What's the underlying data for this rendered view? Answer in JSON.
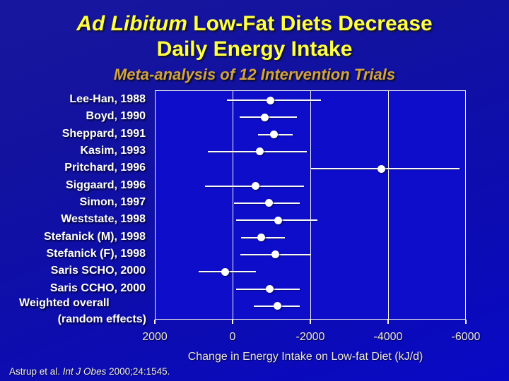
{
  "slide": {
    "title": {
      "italic_part": "Ad Libitum",
      "rest_part": " Low-Fat Diets Decrease",
      "line2": "Daily Energy Intake"
    },
    "subtitle": "Meta-analysis of 12 Intervention Trials",
    "citation": {
      "prefix": "Astrup et al. ",
      "italic": "Int J Obes",
      "suffix": " 2000;24:1545."
    }
  },
  "chart_data": {
    "type": "scatter",
    "subtype": "forest-plot",
    "title": "Ad Libitum Low-Fat Diets Decrease Daily Energy Intake",
    "subtitle": "Meta-analysis of 12 Intervention Trials",
    "xlabel": "Change in Energy Intake on Low-fat Diet (kJ/d)",
    "ylabel": "",
    "xlim": [
      2000,
      -6000
    ],
    "x_axis_reversed": true,
    "x_ticks": [
      2000,
      0,
      -2000,
      -4000,
      -6000
    ],
    "x_tick_labels": [
      "2000",
      "0",
      "-2000",
      "-4000",
      "-6000"
    ],
    "gridlines_at": [
      0,
      -2000,
      -4000
    ],
    "legend": "none",
    "studies": [
      {
        "label": "Lee-Han, 1988",
        "value": -950,
        "ci": [
          160,
          -2260
        ]
      },
      {
        "label": "Boyd, 1990",
        "value": -800,
        "ci": [
          -160,
          -1640
        ]
      },
      {
        "label": "Sheppard, 1991",
        "value": -1040,
        "ci": [
          -640,
          -1530
        ]
      },
      {
        "label": "Kasim, 1993",
        "value": -690,
        "ci": [
          660,
          -1900
        ]
      },
      {
        "label": "Pritchard, 1996",
        "value": -3810,
        "ci": [
          -1990,
          -5810
        ]
      },
      {
        "label": "Siggaard, 1996",
        "value": -580,
        "ci": [
          730,
          -1820
        ]
      },
      {
        "label": "Simon, 1997",
        "value": -910,
        "ci": [
          -20,
          -1710
        ]
      },
      {
        "label": "Weststate, 1998",
        "value": -1150,
        "ci": [
          -70,
          -2170
        ]
      },
      {
        "label": "Stefanick (M), 1998",
        "value": -710,
        "ci": [
          -200,
          -1330
        ]
      },
      {
        "label": "Stefanick (F), 1998",
        "value": -1080,
        "ci": [
          -180,
          -1990
        ]
      },
      {
        "label": "Saris SCHO, 2000",
        "value": 210,
        "ci": [
          890,
          -580
        ]
      },
      {
        "label": "Saris CCHO, 2000",
        "value": -930,
        "ci": [
          -70,
          -1710
        ]
      },
      {
        "label": "Weighted overall",
        "label2": "(random effects)",
        "value": -1130,
        "ci": [
          -530,
          -1710
        ]
      }
    ]
  },
  "colors": {
    "slide_bg_top": "#17179e",
    "slide_bg_bottom": "#0909c6",
    "plot_fill": "#0d0dca",
    "axis_line": "#f6f6ee",
    "point": "#ffffff",
    "error_bar": "#fbfbf4",
    "title_text": "#ffff44",
    "subtitle_text": "#d2a340",
    "label_text": "#ffffff",
    "tick_text": "#ece8da"
  }
}
